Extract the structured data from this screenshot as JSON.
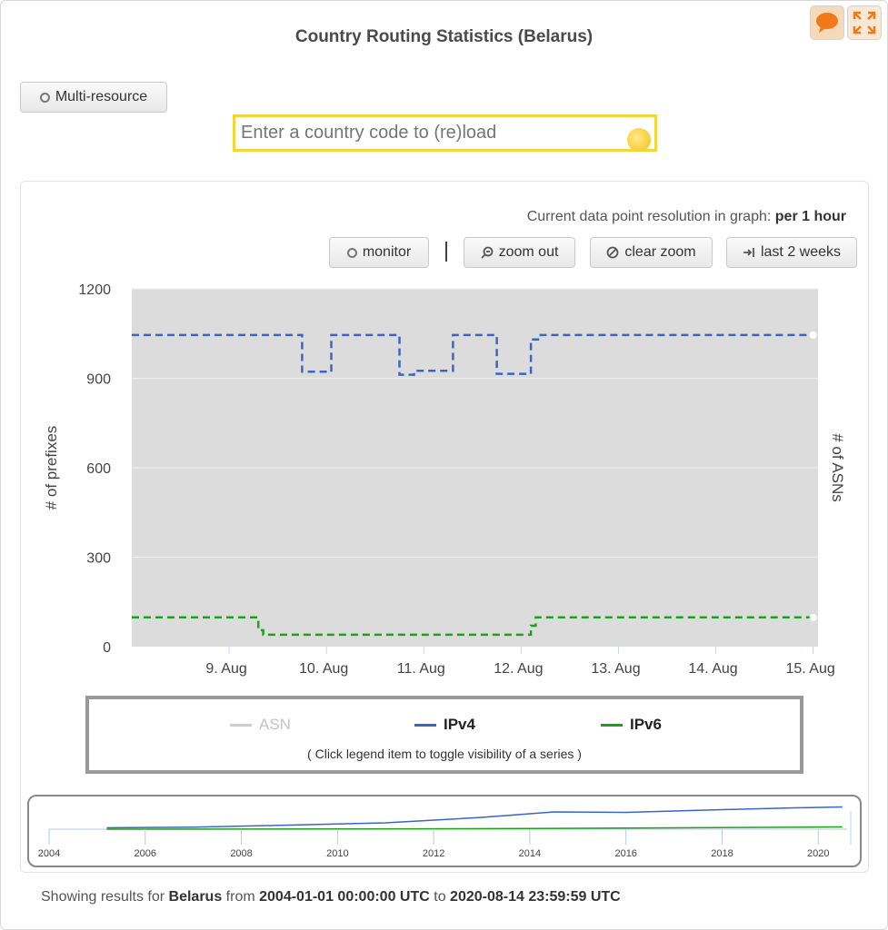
{
  "title": "Country Routing Statistics (Belarus)",
  "toolbar": {
    "feedback_icon": "speech-bubble-icon",
    "fullscreen_icon": "expand-icon",
    "multi_resource_label": "Multi-resource"
  },
  "search": {
    "placeholder": "Enter a country code to (re)load"
  },
  "resolution": {
    "label": "Current data point resolution in graph:",
    "value": "per 1 hour"
  },
  "controls": {
    "monitor": "monitor",
    "zoom_out": "zoom out",
    "clear_zoom": "clear zoom",
    "last_2_weeks": "last 2 weeks"
  },
  "legend": {
    "hint": "( Click legend item to toggle visibility of a series )"
  },
  "colors": {
    "ipv4": "#3a64c8",
    "ipv6": "#1aa31a",
    "asn": "#cccccc",
    "plot_bg": "#dcdcdc"
  },
  "chart_data": [
    {
      "type": "line",
      "ylabel": "# of prefixes",
      "y2label": "# of ASNs",
      "ylim": [
        0,
        1200
      ],
      "y_ticks": [
        0,
        300,
        600,
        900,
        1200
      ],
      "x_ticks": [
        "9. Aug",
        "10. Aug",
        "11. Aug",
        "12. Aug",
        "13. Aug",
        "14. Aug",
        "15. Aug"
      ],
      "xlim": [
        8.0,
        15.05
      ],
      "grid": true,
      "legend_placement": "bottom",
      "series": [
        {
          "name": "ASN",
          "visible": false,
          "x": [],
          "y": []
        },
        {
          "name": "IPv4",
          "style": "dashed",
          "x": [
            8.0,
            9.75,
            9.75,
            10.05,
            10.05,
            10.75,
            10.75,
            10.9,
            10.9,
            11.3,
            11.3,
            11.75,
            11.75,
            12.1,
            12.1,
            12.2,
            12.2,
            15.0
          ],
          "y": [
            1045,
            1045,
            922,
            922,
            1045,
            1045,
            912,
            912,
            925,
            925,
            1045,
            1045,
            915,
            915,
            1030,
            1030,
            1045,
            1045
          ]
        },
        {
          "name": "IPv6",
          "style": "dashed",
          "x": [
            8.0,
            9.3,
            9.3,
            9.35,
            9.35,
            12.1,
            12.1,
            12.15,
            12.15,
            15.0
          ],
          "y": [
            98,
            98,
            55,
            55,
            40,
            40,
            70,
            70,
            98,
            98
          ]
        }
      ]
    },
    {
      "type": "line",
      "role": "navigator",
      "x_ticks": [
        2004,
        2006,
        2008,
        2010,
        2012,
        2014,
        2016,
        2018,
        2020
      ],
      "xlim": [
        2004,
        2020.6
      ],
      "series": [
        {
          "name": "IPv4",
          "x": [
            2005.2,
            2007,
            2009,
            2011,
            2013,
            2014.5,
            2016,
            2018,
            2019.5,
            2020.5
          ],
          "y": [
            60,
            90,
            180,
            280,
            520,
            760,
            740,
            860,
            940,
            980
          ]
        },
        {
          "name": "IPv6",
          "x": [
            2005.2,
            2010,
            2014,
            2017,
            2020.5
          ],
          "y": [
            0,
            10,
            30,
            60,
            98
          ]
        }
      ]
    }
  ],
  "footer": {
    "prefix": "Showing results for",
    "country": "Belarus",
    "from_word": "from",
    "start": "2004-01-01 00:00:00 UTC",
    "to_word": "to",
    "end": "2020-08-14 23:59:59 UTC"
  }
}
